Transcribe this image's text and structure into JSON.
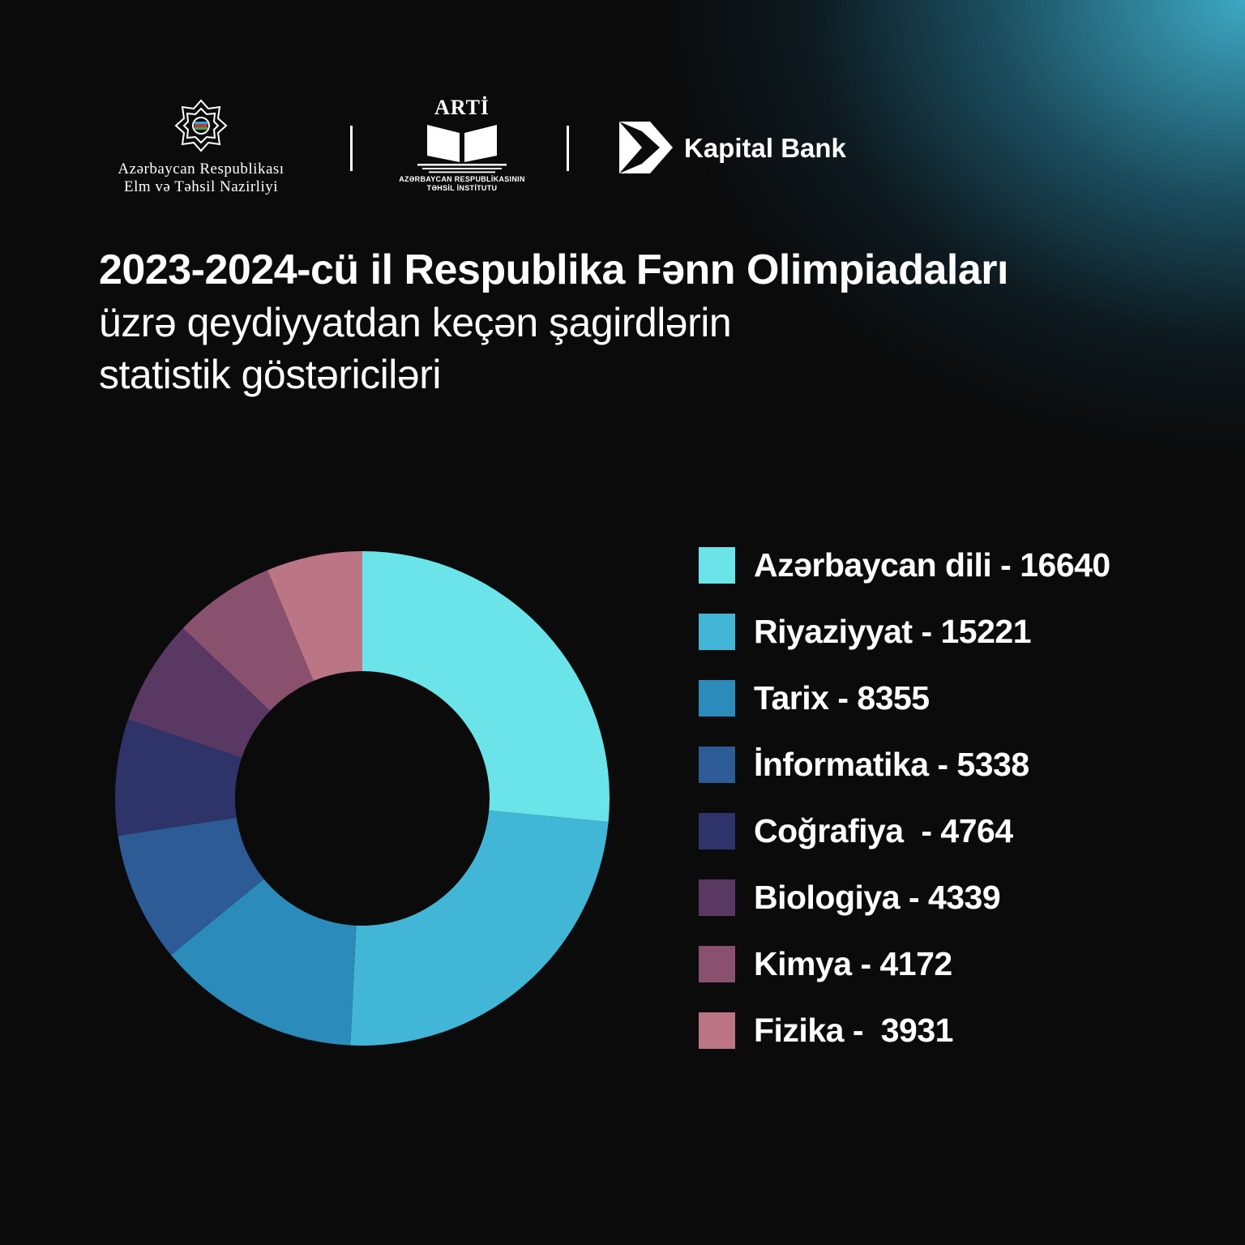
{
  "logos": {
    "ministry": {
      "icon": "ornament-emblem-icon",
      "line1": "Azərbaycan Respublikası",
      "line2": "Elm və Təhsil Nazirliyi"
    },
    "arti": {
      "title": "ARTİ",
      "icon": "open-book-icon",
      "subtitle_line1": "AZƏRBAYCAN RESPUBLİKASININ",
      "subtitle_line2": "TƏHSİL İNSTİTUTU"
    },
    "kapital": {
      "icon": "kapital-k-icon",
      "name": "Kapital Bank"
    }
  },
  "title": {
    "line1": "2023-2024-cü il Respublika Fənn Olimpiadaları",
    "line2": "üzrə qeydiyyatdan keçən şagirdlərin",
    "line3": "statistik göstəriciləri"
  },
  "chart_data": {
    "type": "pie",
    "style": "donut",
    "legend_position": "right",
    "categories": [
      "Azərbaycan dili",
      "Riyaziyyat",
      "Tarix",
      "İnformatika",
      "Coğrafiya",
      "Biologiya",
      "Kimya",
      "Fizika"
    ],
    "values": [
      16640,
      15221,
      8355,
      5338,
      4764,
      4339,
      4172,
      3931
    ],
    "colors": [
      "#6ae4e8",
      "#42b6d6",
      "#2b8bba",
      "#2d5b96",
      "#2e346a",
      "#5a3864",
      "#8a516f",
      "#bc7585"
    ],
    "legend": [
      {
        "label": "Azərbaycan dili - 16640"
      },
      {
        "label": "Riyaziyyat - 15221"
      },
      {
        "label": "Tarix - 8355"
      },
      {
        "label": "İnformatika - 5338"
      },
      {
        "label": "Coğrafiya  - 4764"
      },
      {
        "label": "Biologiya - 4339"
      },
      {
        "label": "Kimya - 4172"
      },
      {
        "label": "Fizika -  3931"
      }
    ]
  }
}
